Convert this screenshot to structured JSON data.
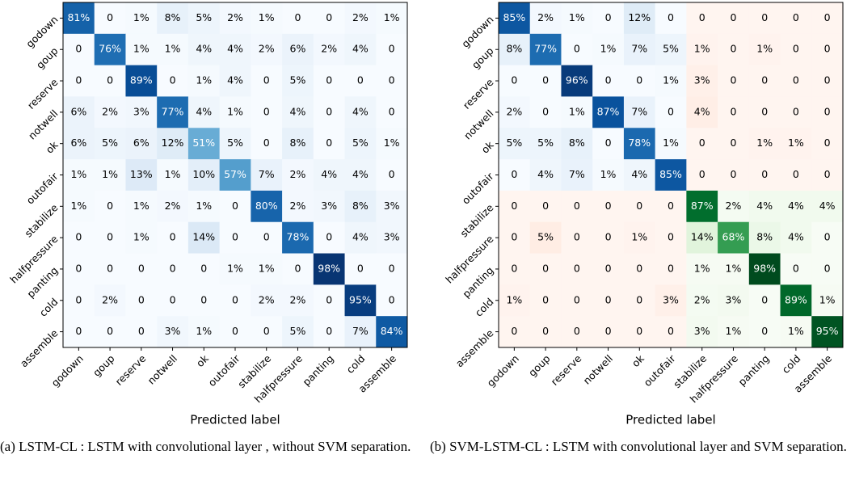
{
  "chart_data": [
    {
      "type": "heatmap",
      "categories": [
        "godown",
        "goup",
        "reserve",
        "notwell",
        "ok",
        "outofair",
        "stabilize",
        "halfpressure",
        "panting",
        "cold",
        "assemble"
      ],
      "xlabel": "Predicted label",
      "caption": "(a) LSTM-CL : LSTM with convolutional layer , without SVM separation.",
      "cmap": [
        "Blues"
      ],
      "values": [
        [
          81,
          0,
          1,
          8,
          5,
          2,
          1,
          0,
          0,
          2,
          1
        ],
        [
          0,
          76,
          1,
          1,
          4,
          4,
          2,
          6,
          2,
          4,
          0
        ],
        [
          0,
          0,
          89,
          0,
          1,
          4,
          0,
          5,
          0,
          0,
          0
        ],
        [
          6,
          2,
          3,
          77,
          4,
          1,
          0,
          4,
          0,
          4,
          0
        ],
        [
          6,
          5,
          6,
          12,
          51,
          5,
          0,
          8,
          0,
          5,
          1
        ],
        [
          1,
          1,
          13,
          1,
          10,
          57,
          7,
          2,
          4,
          4,
          0
        ],
        [
          1,
          0,
          1,
          2,
          1,
          0,
          80,
          2,
          3,
          8,
          3
        ],
        [
          0,
          0,
          1,
          0,
          14,
          0,
          0,
          78,
          0,
          4,
          3
        ],
        [
          0,
          0,
          0,
          0,
          0,
          1,
          1,
          0,
          98,
          0,
          0
        ],
        [
          0,
          2,
          0,
          0,
          0,
          0,
          2,
          2,
          0,
          95,
          0
        ],
        [
          0,
          0,
          0,
          3,
          1,
          0,
          0,
          5,
          0,
          7,
          84
        ]
      ],
      "value_labels": [
        [
          "81%",
          "0",
          "1%",
          "8%",
          "5%",
          "2%",
          "1%",
          "0",
          "0",
          "2%",
          "1%"
        ],
        [
          "0",
          "76%",
          "1%",
          "1%",
          "4%",
          "4%",
          "2%",
          "6%",
          "2%",
          "4%",
          "0"
        ],
        [
          "0",
          "0",
          "89%",
          "0",
          "1%",
          "4%",
          "0",
          "5%",
          "0",
          "0",
          "0"
        ],
        [
          "6%",
          "2%",
          "3%",
          "77%",
          "4%",
          "1%",
          "0",
          "4%",
          "0",
          "4%",
          "0"
        ],
        [
          "6%",
          "5%",
          "6%",
          "12%",
          "51%",
          "5%",
          "0",
          "8%",
          "0",
          "5%",
          "1%"
        ],
        [
          "1%",
          "1%",
          "13%",
          "1%",
          "10%",
          "57%",
          "7%",
          "2%",
          "4%",
          "4%",
          "0"
        ],
        [
          "1%",
          "0",
          "1%",
          "2%",
          "1%",
          "0",
          "80%",
          "2%",
          "3%",
          "8%",
          "3%"
        ],
        [
          "0",
          "0",
          "1%",
          "0",
          "14%",
          "0",
          "0",
          "78%",
          "0",
          "4%",
          "3%"
        ],
        [
          "0",
          "0",
          "0",
          "0",
          "0",
          "1%",
          "1%",
          "0",
          "98%",
          "0",
          "0"
        ],
        [
          "0",
          "2%",
          "0",
          "0",
          "0",
          "0",
          "2%",
          "2%",
          "0",
          "95%",
          "0"
        ],
        [
          "0",
          "0",
          "0",
          "3%",
          "1%",
          "0",
          "0",
          "5%",
          "0",
          "7%",
          "84%"
        ]
      ]
    },
    {
      "type": "heatmap",
      "categories": [
        "godown",
        "goup",
        "reserve",
        "notwell",
        "ok",
        "outofair",
        "stabilize",
        "halfpressure",
        "panting",
        "cold",
        "assemble"
      ],
      "xlabel": "Predicted label",
      "caption": "(b) SVM-LSTM-CL : LSTM with convolutional layer and SVM separation.",
      "cmap": [
        "Blues",
        "Greens",
        "Reds"
      ],
      "block_split": 6,
      "values": [
        [
          85,
          2,
          1,
          0,
          12,
          0,
          0,
          0,
          0,
          0,
          0
        ],
        [
          8,
          77,
          0,
          1,
          7,
          5,
          1,
          0,
          1,
          0,
          0
        ],
        [
          0,
          0,
          96,
          0,
          0,
          1,
          3,
          0,
          0,
          0,
          0
        ],
        [
          2,
          0,
          1,
          87,
          7,
          0,
          4,
          0,
          0,
          0,
          0
        ],
        [
          5,
          5,
          8,
          0,
          78,
          1,
          0,
          0,
          1,
          1,
          0
        ],
        [
          0,
          4,
          7,
          1,
          4,
          85,
          0,
          0,
          0,
          0,
          0
        ],
        [
          0,
          0,
          0,
          0,
          0,
          0,
          87,
          2,
          4,
          4,
          4
        ],
        [
          0,
          5,
          0,
          0,
          1,
          0,
          14,
          68,
          8,
          4,
          0
        ],
        [
          0,
          0,
          0,
          0,
          0,
          0,
          1,
          1,
          98,
          0,
          0
        ],
        [
          1,
          0,
          0,
          0,
          0,
          3,
          2,
          3,
          0,
          89,
          1
        ],
        [
          0,
          0,
          0,
          0,
          0,
          0,
          3,
          1,
          0,
          1,
          95
        ]
      ],
      "value_labels": [
        [
          "85%",
          "2%",
          "1%",
          "0",
          "12%",
          "0",
          "0",
          "0",
          "0",
          "0",
          "0"
        ],
        [
          "8%",
          "77%",
          "0",
          "1%",
          "7%",
          "5%",
          "1%",
          "0",
          "1%",
          "0",
          "0"
        ],
        [
          "0",
          "0",
          "96%",
          "0",
          "0",
          "1%",
          "3%",
          "0",
          "0",
          "0",
          "0"
        ],
        [
          "2%",
          "0",
          "1%",
          "87%",
          "7%",
          "0",
          "4%",
          "0",
          "0",
          "0",
          "0"
        ],
        [
          "5%",
          "5%",
          "8%",
          "0",
          "78%",
          "1%",
          "0",
          "0",
          "1%",
          "1%",
          "0"
        ],
        [
          "0",
          "4%",
          "7%",
          "1%",
          "4%",
          "85%",
          "0",
          "0",
          "0",
          "0",
          "0"
        ],
        [
          "0",
          "0",
          "0",
          "0",
          "0",
          "0",
          "87%",
          "2%",
          "4%",
          "4%",
          "4%"
        ],
        [
          "0",
          "5%",
          "0",
          "0",
          "1%",
          "0",
          "14%",
          "68%",
          "8%",
          "4%",
          "0"
        ],
        [
          "0",
          "0",
          "0",
          "0",
          "0",
          "0",
          "1%",
          "1%",
          "98%",
          "0",
          "0"
        ],
        [
          "1%",
          "0",
          "0",
          "0",
          "0",
          "3%",
          "2%",
          "3%",
          "0",
          "89%",
          "1%"
        ],
        [
          "0",
          "0",
          "0",
          "0",
          "0",
          "0",
          "3%",
          "1%",
          "0",
          "1%",
          "95%"
        ]
      ]
    }
  ]
}
